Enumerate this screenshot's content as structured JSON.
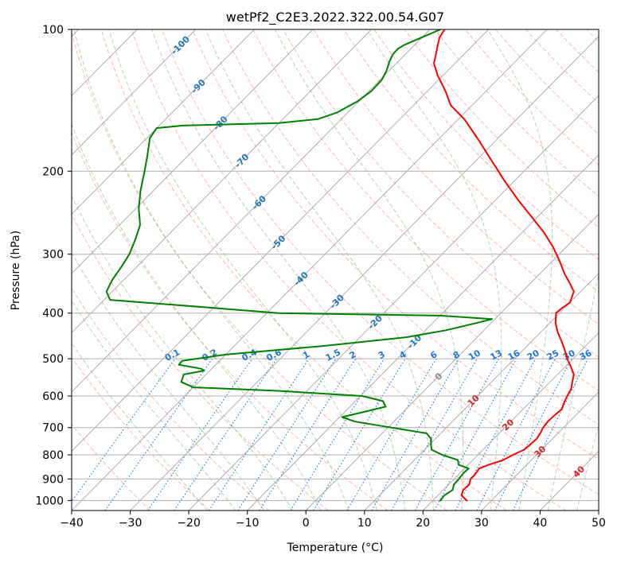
{
  "chart_data": {
    "type": "line",
    "chart_kind": "skew-T log-P diagram",
    "title": "wetPf2_C2E3.2022.322.00.54.G07",
    "xlabel": "Temperature (°C)",
    "ylabel": "Pressure (hPa)",
    "xlim": [
      -40,
      50
    ],
    "ylim": [
      1050,
      100
    ],
    "y_scale": "log",
    "x_ticks": [
      -40,
      -30,
      -20,
      -10,
      0,
      10,
      20,
      30,
      40,
      50
    ],
    "y_ticks": [
      100,
      200,
      300,
      400,
      500,
      600,
      700,
      800,
      900,
      1000
    ],
    "grid": "horizontal pressure lines and skewed isotherms",
    "isotherm_labels": [
      "-100",
      "-90",
      "-80",
      "-70",
      "-60",
      "-50",
      "-40",
      "-30",
      "-20",
      "-10",
      "0",
      "10",
      "20",
      "30",
      "40"
    ],
    "mixing_ratio_labels": [
      "0.1",
      "0.2",
      "0.4",
      "0.6",
      "1",
      "1.5",
      "2",
      "3",
      "4",
      "6",
      "8",
      "10",
      "13",
      "16",
      "20",
      "25",
      "30",
      "36"
    ],
    "colors": {
      "temperature": "#ff0000",
      "dewpoint": "#008000",
      "isotherm": "#999999",
      "dry_adiabat": "#fa8060",
      "moist_adiabat": "#6fb36f",
      "mixing_ratio": "#1f77d4",
      "isotherm_label_cold": "#1f77b4",
      "isotherm_label_warm": "#d62728"
    },
    "series": [
      {
        "name": "Temperature",
        "points": [
          [
            1003,
            26.0
          ],
          [
            975,
            24.0
          ],
          [
            950,
            23.4
          ],
          [
            925,
            23.5
          ],
          [
            900,
            22.8
          ],
          [
            880,
            22.8
          ],
          [
            855,
            22.5
          ],
          [
            840,
            23.5
          ],
          [
            820,
            25.2
          ],
          [
            800,
            26.0
          ],
          [
            780,
            27.0
          ],
          [
            760,
            27.2
          ],
          [
            740,
            27.3
          ],
          [
            720,
            27.0
          ],
          [
            700,
            26.5
          ],
          [
            680,
            26.3
          ],
          [
            660,
            26.4
          ],
          [
            640,
            26.6
          ],
          [
            620,
            25.9
          ],
          [
            600,
            25.3
          ],
          [
            580,
            24.8
          ],
          [
            560,
            23.8
          ],
          [
            540,
            22.8
          ],
          [
            520,
            21.0
          ],
          [
            500,
            19.0
          ],
          [
            480,
            17.2
          ],
          [
            460,
            15.2
          ],
          [
            440,
            13.0
          ],
          [
            420,
            11.0
          ],
          [
            400,
            9.4
          ],
          [
            390,
            9.6
          ],
          [
            380,
            10.0
          ],
          [
            360,
            8.8
          ],
          [
            345,
            6.6
          ],
          [
            330,
            4.2
          ],
          [
            310,
            1.2
          ],
          [
            290,
            -2.2
          ],
          [
            270,
            -6.2
          ],
          [
            250,
            -11.0
          ],
          [
            230,
            -16.2
          ],
          [
            210,
            -21.6
          ],
          [
            190,
            -27.3
          ],
          [
            170,
            -33.6
          ],
          [
            155,
            -39.0
          ],
          [
            145,
            -43.6
          ],
          [
            135,
            -47.0
          ],
          [
            125,
            -51.0
          ],
          [
            118,
            -53.6
          ],
          [
            112,
            -55.0
          ],
          [
            108,
            -56.0
          ],
          [
            104,
            -57.0
          ],
          [
            100,
            -57.5
          ]
        ]
      },
      {
        "name": "Dewpoint",
        "points": [
          [
            1003,
            21.3
          ],
          [
            975,
            21.1
          ],
          [
            950,
            21.6
          ],
          [
            925,
            20.9
          ],
          [
            900,
            20.8
          ],
          [
            875,
            20.6
          ],
          [
            855,
            20.7
          ],
          [
            840,
            18.4
          ],
          [
            820,
            17.4
          ],
          [
            800,
            13.9
          ],
          [
            780,
            11.2
          ],
          [
            760,
            10.2
          ],
          [
            740,
            9.3
          ],
          [
            720,
            7.6
          ],
          [
            700,
            0.6
          ],
          [
            680,
            -6.6
          ],
          [
            665,
            -9.6
          ],
          [
            650,
            -7.0
          ],
          [
            632,
            -3.9
          ],
          [
            615,
            -5.3
          ],
          [
            600,
            -9.7
          ],
          [
            585,
            -25.0
          ],
          [
            575,
            -40.0
          ],
          [
            560,
            -43.0
          ],
          [
            540,
            -43.8
          ],
          [
            530,
            -41.0
          ],
          [
            525,
            -41.8
          ],
          [
            515,
            -46.3
          ],
          [
            505,
            -46.4
          ],
          [
            490,
            -40.0
          ],
          [
            470,
            -25.0
          ],
          [
            450,
            -12.0
          ],
          [
            435,
            -6.5
          ],
          [
            420,
            -2.5
          ],
          [
            412,
            -0.5
          ],
          [
            405,
            -10.0
          ],
          [
            400,
            -38.0
          ],
          [
            390,
            -50.0
          ],
          [
            375,
            -69.0
          ],
          [
            360,
            -71.0
          ],
          [
            340,
            -72.0
          ],
          [
            320,
            -72.6
          ],
          [
            300,
            -73.4
          ],
          [
            280,
            -74.8
          ],
          [
            260,
            -76.5
          ],
          [
            240,
            -79.5
          ],
          [
            220,
            -82.2
          ],
          [
            200,
            -84.8
          ],
          [
            185,
            -87.0
          ],
          [
            170,
            -89.5
          ],
          [
            162,
            -90.0
          ],
          [
            160,
            -86.0
          ],
          [
            158,
            -70.0
          ],
          [
            155,
            -64.0
          ],
          [
            150,
            -61.8
          ],
          [
            142,
            -60.2
          ],
          [
            135,
            -59.6
          ],
          [
            128,
            -59.7
          ],
          [
            122,
            -60.5
          ],
          [
            117,
            -61.5
          ],
          [
            113,
            -62.1
          ],
          [
            110,
            -62.2
          ],
          [
            108,
            -61.8
          ],
          [
            105,
            -60.5
          ],
          [
            100,
            -58.2
          ]
        ]
      }
    ]
  }
}
